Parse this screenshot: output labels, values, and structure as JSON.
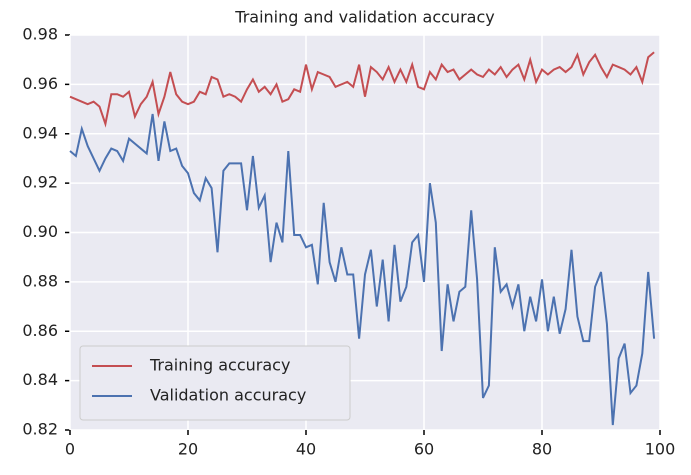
{
  "chart_data": {
    "type": "line",
    "title": "Training and validation accuracy",
    "x": [
      0,
      1,
      2,
      3,
      4,
      5,
      6,
      7,
      8,
      9,
      10,
      11,
      12,
      13,
      14,
      15,
      16,
      17,
      18,
      19,
      20,
      21,
      22,
      23,
      24,
      25,
      26,
      27,
      28,
      29,
      30,
      31,
      32,
      33,
      34,
      35,
      36,
      37,
      38,
      39,
      40,
      41,
      42,
      43,
      44,
      45,
      46,
      47,
      48,
      49,
      50,
      51,
      52,
      53,
      54,
      55,
      56,
      57,
      58,
      59,
      60,
      61,
      62,
      63,
      64,
      65,
      66,
      67,
      68,
      69,
      70,
      71,
      72,
      73,
      74,
      75,
      76,
      77,
      78,
      79,
      80,
      81,
      82,
      83,
      84,
      85,
      86,
      87,
      88,
      89,
      90,
      91,
      92,
      93,
      94,
      95,
      96,
      97,
      98,
      99
    ],
    "series": [
      {
        "name": "Training accuracy",
        "color": "#c44e52",
        "values": [
          0.955,
          0.954,
          0.953,
          0.952,
          0.953,
          0.951,
          0.944,
          0.956,
          0.956,
          0.955,
          0.957,
          0.947,
          0.952,
          0.955,
          0.961,
          0.948,
          0.955,
          0.965,
          0.956,
          0.953,
          0.952,
          0.953,
          0.957,
          0.956,
          0.963,
          0.962,
          0.955,
          0.956,
          0.955,
          0.953,
          0.958,
          0.962,
          0.957,
          0.959,
          0.956,
          0.96,
          0.953,
          0.954,
          0.958,
          0.957,
          0.968,
          0.958,
          0.965,
          0.964,
          0.963,
          0.959,
          0.96,
          0.961,
          0.959,
          0.968,
          0.955,
          0.967,
          0.965,
          0.962,
          0.967,
          0.961,
          0.966,
          0.961,
          0.968,
          0.959,
          0.958,
          0.965,
          0.962,
          0.968,
          0.965,
          0.966,
          0.962,
          0.964,
          0.966,
          0.964,
          0.963,
          0.966,
          0.964,
          0.967,
          0.963,
          0.966,
          0.968,
          0.962,
          0.97,
          0.961,
          0.966,
          0.964,
          0.966,
          0.967,
          0.965,
          0.967,
          0.972,
          0.964,
          0.969,
          0.972,
          0.967,
          0.963,
          0.968,
          0.967,
          0.966,
          0.964,
          0.967,
          0.961,
          0.971,
          0.973
        ]
      },
      {
        "name": "Validation accuracy",
        "color": "#4c72b0",
        "values": [
          0.933,
          0.931,
          0.942,
          0.935,
          0.93,
          0.925,
          0.93,
          0.934,
          0.933,
          0.929,
          0.938,
          0.936,
          0.934,
          0.932,
          0.948,
          0.929,
          0.945,
          0.933,
          0.934,
          0.927,
          0.924,
          0.916,
          0.913,
          0.922,
          0.918,
          0.892,
          0.925,
          0.928,
          0.928,
          0.928,
          0.909,
          0.931,
          0.91,
          0.915,
          0.888,
          0.904,
          0.896,
          0.933,
          0.899,
          0.899,
          0.894,
          0.895,
          0.879,
          0.912,
          0.888,
          0.88,
          0.894,
          0.883,
          0.883,
          0.857,
          0.883,
          0.893,
          0.87,
          0.889,
          0.864,
          0.895,
          0.872,
          0.878,
          0.896,
          0.899,
          0.88,
          0.92,
          0.904,
          0.852,
          0.879,
          0.864,
          0.876,
          0.878,
          0.909,
          0.881,
          0.833,
          0.838,
          0.894,
          0.876,
          0.879,
          0.87,
          0.879,
          0.86,
          0.874,
          0.864,
          0.881,
          0.86,
          0.874,
          0.859,
          0.869,
          0.893,
          0.866,
          0.856,
          0.856,
          0.878,
          0.884,
          0.863,
          0.822,
          0.849,
          0.855,
          0.835,
          0.838,
          0.851,
          0.884,
          0.857
        ]
      }
    ],
    "xlim": [
      0,
      100
    ],
    "xticks": [
      0,
      20,
      40,
      60,
      80,
      100
    ],
    "ylim": [
      0.82,
      0.98
    ],
    "yticks": [
      0.82,
      0.84,
      0.86,
      0.88,
      {
        "value": 0.9,
        "label": "0.90"
      },
      0.92,
      0.94,
      0.96,
      0.98
    ],
    "grid": true,
    "legend": "lower left"
  }
}
